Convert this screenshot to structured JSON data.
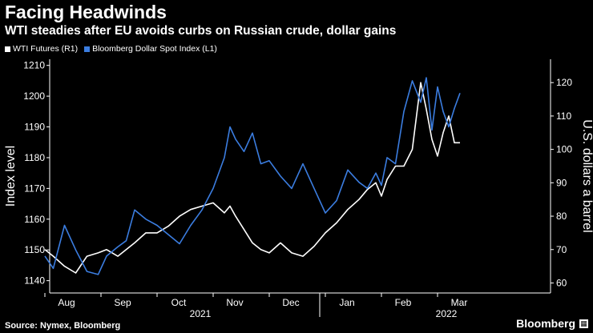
{
  "header": {
    "title": "Facing Headwinds",
    "subtitle": "WTI steadies after EU avoids curbs on Russian crude, dollar gains"
  },
  "footer": {
    "source": "Source: Nymex, Bloomberg",
    "brand": "Bloomberg",
    "brand_icon": "chart-icon"
  },
  "colors": {
    "background": "#000000",
    "wti": "#ffffff",
    "dollar": "#3b7de0",
    "axis": "#ffffff"
  },
  "chart_data": {
    "type": "line",
    "title": "Facing Headwinds",
    "subtitle": "WTI steadies after EU avoids curbs on Russian crude, dollar gains",
    "x_ticks": [
      "Aug",
      "Sep",
      "Oct",
      "Nov",
      "Dec",
      "Jan",
      "Feb",
      "Mar"
    ],
    "x_groups": [
      "2021",
      "2022"
    ],
    "left_axis": {
      "label": "Index level",
      "ylim": [
        1136,
        1212
      ],
      "ticks": [
        1140,
        1150,
        1160,
        1170,
        1180,
        1190,
        1200,
        1210
      ]
    },
    "right_axis": {
      "label": "U.S. dollars a barrel",
      "ylim": [
        57,
        127
      ],
      "ticks": [
        60,
        70,
        80,
        90,
        100,
        110,
        120
      ]
    },
    "series": [
      {
        "name": "WTI Futures (R1)",
        "axis": "right",
        "x": [
          0.0,
          0.15,
          0.35,
          0.55,
          0.75,
          0.95,
          1.1,
          1.3,
          1.45,
          1.6,
          1.8,
          2.0,
          2.2,
          2.4,
          2.6,
          2.8,
          3.0,
          3.2,
          3.3,
          3.4,
          3.55,
          3.7,
          3.85,
          4.0,
          4.2,
          4.4,
          4.6,
          4.8,
          5.0,
          5.2,
          5.4,
          5.6,
          5.75,
          5.9,
          6.0,
          6.1,
          6.25,
          6.4,
          6.55,
          6.7,
          6.8,
          6.9,
          7.0,
          7.1,
          7.2,
          7.3,
          7.4
        ],
        "values": [
          70,
          68,
          65,
          63,
          68,
          69,
          70,
          68,
          70,
          72,
          75,
          75,
          77,
          80,
          82,
          83,
          84,
          81,
          83,
          80,
          76,
          72,
          70,
          69,
          72,
          69,
          68,
          71,
          75,
          78,
          82,
          85,
          88,
          90,
          86,
          91,
          95,
          95,
          100,
          120,
          112,
          103,
          98,
          105,
          110,
          102,
          102
        ],
        "color": "#ffffff"
      },
      {
        "name": "Bloomberg Dollar Spot Index (L1)",
        "axis": "left",
        "x": [
          0.0,
          0.15,
          0.35,
          0.55,
          0.75,
          0.95,
          1.1,
          1.3,
          1.45,
          1.6,
          1.8,
          2.0,
          2.2,
          2.4,
          2.6,
          2.8,
          3.0,
          3.2,
          3.3,
          3.4,
          3.55,
          3.7,
          3.85,
          4.0,
          4.2,
          4.4,
          4.6,
          4.8,
          5.0,
          5.2,
          5.4,
          5.6,
          5.75,
          5.9,
          6.0,
          6.1,
          6.25,
          6.4,
          6.55,
          6.7,
          6.8,
          6.9,
          7.0,
          7.1,
          7.2,
          7.3,
          7.4
        ],
        "values": [
          1148,
          1144,
          1158,
          1150,
          1143,
          1142,
          1148,
          1151,
          1153,
          1163,
          1160,
          1158,
          1155,
          1152,
          1158,
          1163,
          1170,
          1180,
          1190,
          1186,
          1182,
          1188,
          1178,
          1179,
          1174,
          1170,
          1178,
          1170,
          1162,
          1166,
          1176,
          1172,
          1170,
          1175,
          1171,
          1180,
          1178,
          1195,
          1205,
          1198,
          1206,
          1189,
          1203,
          1195,
          1190,
          1196,
          1201
        ],
        "color": "#3b7de0"
      }
    ]
  }
}
